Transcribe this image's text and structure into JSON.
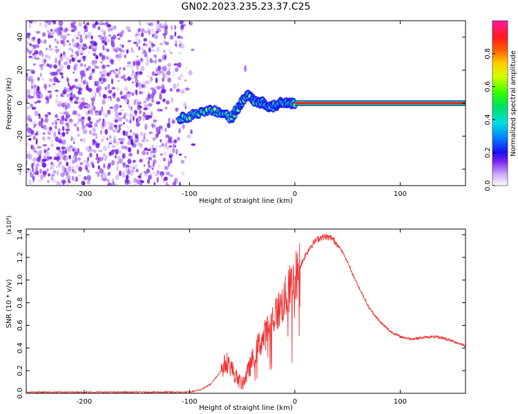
{
  "title": "GN02.2023.235.23.37.C25",
  "chart_data": [
    {
      "type": "heatmap",
      "xlabel": "Height of straight line (km)",
      "ylabel": "Frequency (Hz)",
      "xlim": [
        -255,
        162
      ],
      "ylim": [
        -50,
        50
      ],
      "xticks": [
        -200,
        -100,
        0,
        100
      ],
      "yticks": [
        -40,
        -20,
        0,
        20,
        40
      ],
      "colorbar": {
        "label": "Normalized spectral amplitude",
        "range": [
          0,
          1
        ],
        "ticks": [
          "0.0",
          "0.2",
          "0.4",
          "0.6",
          "0.8"
        ],
        "tick_values": [
          0.0,
          0.2,
          0.4,
          0.6,
          0.8
        ]
      },
      "noise_region_x": [
        -255,
        -95
      ],
      "carrier": {
        "frequency": 0,
        "x_range": [
          0,
          162
        ],
        "amplitude": 0.95
      },
      "track": [
        {
          "x": -110,
          "f": -9
        },
        {
          "x": -100,
          "f": -8
        },
        {
          "x": -90,
          "f": -6
        },
        {
          "x": -80,
          "f": -4
        },
        {
          "x": -70,
          "f": -6
        },
        {
          "x": -60,
          "f": -9
        },
        {
          "x": -55,
          "f": -4
        },
        {
          "x": -50,
          "f": 1
        },
        {
          "x": -45,
          "f": 5
        },
        {
          "x": -40,
          "f": 2
        },
        {
          "x": -35,
          "f": 0
        },
        {
          "x": -30,
          "f": 1
        },
        {
          "x": -25,
          "f": -2
        },
        {
          "x": -20,
          "f": -2
        },
        {
          "x": -15,
          "f": 0
        },
        {
          "x": -10,
          "f": 1
        },
        {
          "x": -5,
          "f": 0
        },
        {
          "x": 0,
          "f": 0
        }
      ],
      "spur": {
        "x": -47,
        "f": 21
      }
    },
    {
      "type": "line",
      "xlabel": "Height of straight line (km)",
      "ylabel": "SNR (10 * v/v)",
      "y_multiplier": "(x10⁴)",
      "xlim": [
        -255,
        162
      ],
      "ylim": [
        0,
        1.45
      ],
      "xticks": [
        -200,
        -100,
        0,
        100
      ],
      "yticks": [
        "0.0",
        "0.2",
        "0.4",
        "0.6",
        "0.8",
        "1.0",
        "1.2",
        "1.4"
      ],
      "ytick_values": [
        0,
        0.2,
        0.4,
        0.6,
        0.8,
        1.0,
        1.2,
        1.4
      ],
      "color": "#ee3333",
      "series": [
        {
          "x": [
            -255,
            -200,
            -150,
            -110,
            -100,
            -90,
            -80,
            -70,
            -65,
            -60,
            -55,
            -50,
            -45,
            -40,
            -35,
            -30,
            -25,
            -20,
            -15,
            -10,
            -5,
            0,
            5,
            10,
            15,
            20,
            25,
            30,
            35,
            40,
            45,
            50,
            55,
            60,
            65,
            70,
            80,
            90,
            100,
            110,
            120,
            130,
            140,
            150,
            162
          ],
          "y": [
            0.01,
            0.01,
            0.01,
            0.01,
            0.01,
            0.03,
            0.08,
            0.2,
            0.28,
            0.22,
            0.13,
            0.08,
            0.18,
            0.3,
            0.42,
            0.48,
            0.58,
            0.68,
            0.74,
            0.82,
            0.92,
            1.02,
            1.12,
            1.22,
            1.3,
            1.35,
            1.38,
            1.38,
            1.37,
            1.32,
            1.25,
            1.16,
            1.05,
            0.95,
            0.86,
            0.76,
            0.64,
            0.55,
            0.5,
            0.48,
            0.49,
            0.5,
            0.49,
            0.46,
            0.42
          ]
        }
      ]
    }
  ]
}
